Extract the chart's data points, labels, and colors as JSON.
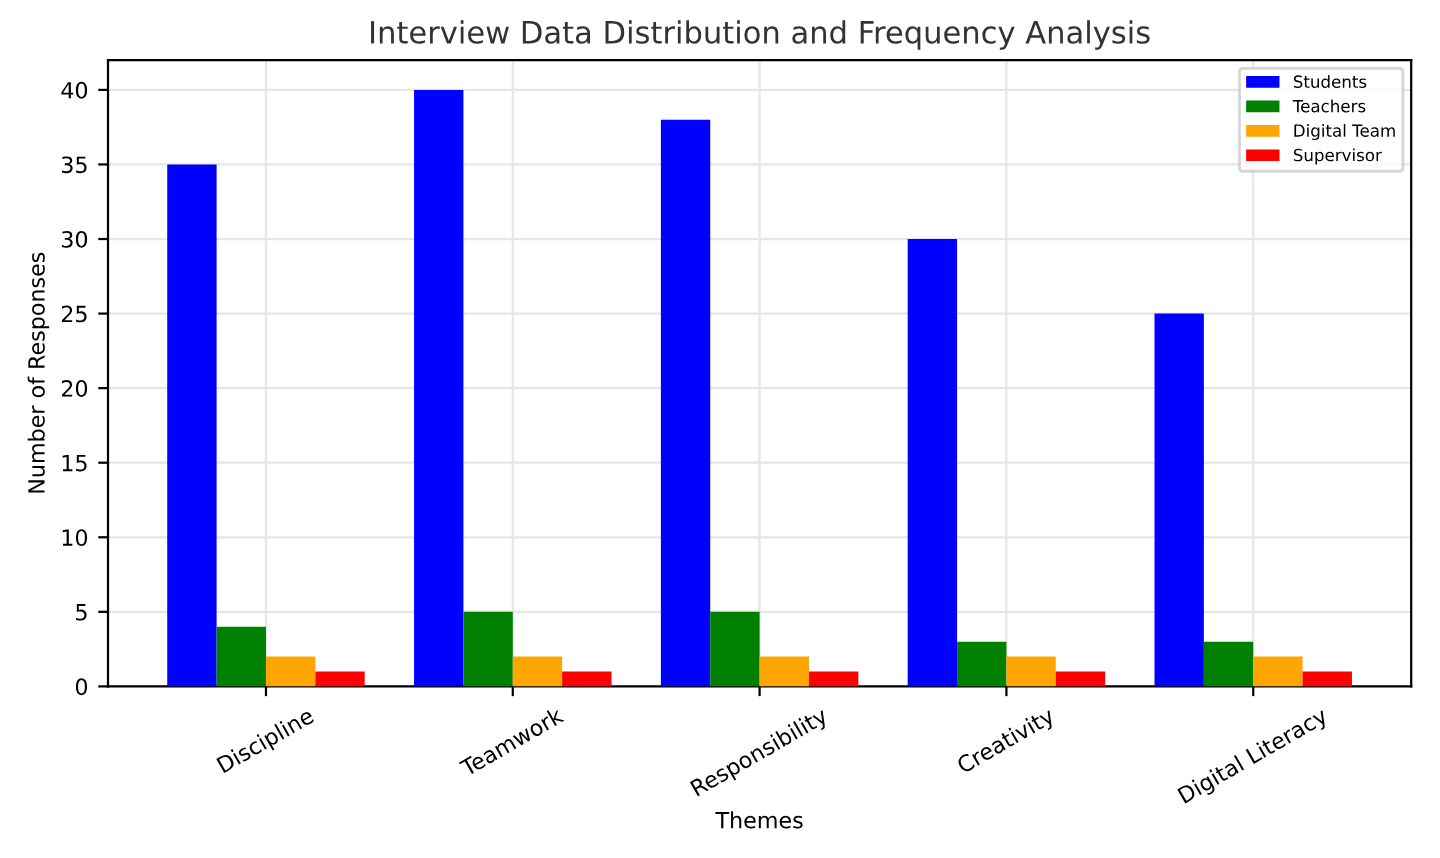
{
  "chart_data": {
    "type": "bar",
    "title": "Interview Data Distribution and Frequency Analysis",
    "xlabel": "Themes",
    "ylabel": "Number of Responses",
    "categories": [
      "Discipline",
      "Teamwork",
      "Responsibility",
      "Creativity",
      "Digital Literacy"
    ],
    "series": [
      {
        "name": "Students",
        "color": "#0000ff",
        "values": [
          35,
          40,
          38,
          30,
          25
        ]
      },
      {
        "name": "Teachers",
        "color": "#008000",
        "values": [
          4,
          5,
          5,
          3,
          3
        ]
      },
      {
        "name": "Digital Team",
        "color": "#ffa500",
        "values": [
          2,
          2,
          2,
          2,
          2
        ]
      },
      {
        "name": "Supervisor",
        "color": "#ff0000",
        "values": [
          1,
          1,
          1,
          1,
          1
        ]
      }
    ],
    "ylim": [
      0,
      42
    ],
    "yticks": [
      0,
      5,
      10,
      15,
      20,
      25,
      30,
      35,
      40
    ],
    "grid": true,
    "legend": "top right"
  }
}
